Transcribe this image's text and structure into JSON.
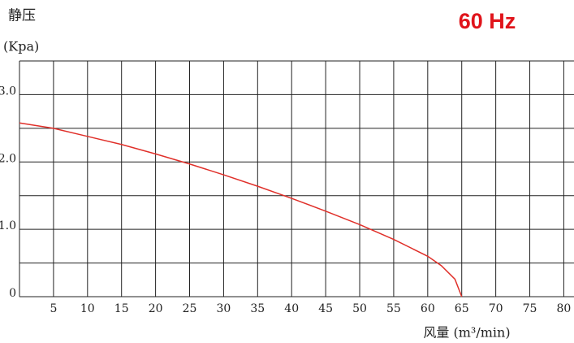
{
  "chart_data": {
    "type": "line",
    "title": "60 Hz",
    "y_label": "静压",
    "y_unit": "(Kpa)",
    "x_label": "风量 (m³/min)",
    "x": [
      0,
      5,
      10,
      15,
      20,
      25,
      30,
      35,
      40,
      45,
      50,
      55,
      60,
      62,
      64,
      65
    ],
    "series": [
      {
        "color": "#e0302a",
        "values": [
          2.58,
          2.5,
          2.38,
          2.26,
          2.12,
          1.97,
          1.81,
          1.64,
          1.46,
          1.27,
          1.07,
          0.85,
          0.6,
          0.46,
          0.26,
          0
        ]
      }
    ],
    "xlim": [
      0,
      81.5
    ],
    "xticks": [
      5,
      10,
      15,
      20,
      25,
      30,
      35,
      40,
      45,
      50,
      55,
      60,
      65,
      70,
      75,
      80
    ],
    "ylim": [
      0,
      3.5
    ],
    "yticks": [
      0,
      {
        "value": 1,
        "label": "1.0"
      },
      {
        "value": 2,
        "label": "2.0"
      },
      {
        "value": 3,
        "label": "3.0"
      }
    ],
    "minor_yticks": [
      0.5,
      1.5,
      2.5,
      3.5
    ],
    "grid": true
  }
}
